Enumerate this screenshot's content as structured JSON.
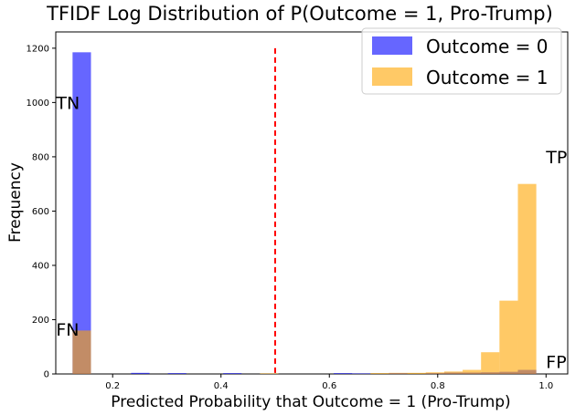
{
  "chart_data": {
    "type": "histogram",
    "title": "TFIDF Log Distribution of P(Outcome = 1, Pro-Trump)",
    "xlabel": "Predicted Probability that Outcome = 1 (Pro-Trump)",
    "ylabel": "Frequency",
    "xlim": [
      0.095,
      1.04
    ],
    "ylim": [
      0,
      1260
    ],
    "xticks": [
      0.2,
      0.4,
      0.6,
      0.8,
      1.0
    ],
    "xtick_labels": [
      "0.2",
      "0.4",
      "0.6",
      "0.8",
      "1.0"
    ],
    "yticks": [
      0,
      200,
      400,
      600,
      800,
      1000,
      1200
    ],
    "ytick_labels": [
      "0",
      "200",
      "400",
      "600",
      "800",
      "1000",
      "1200"
    ],
    "threshold": {
      "x": 0.5,
      "y_top": 1200,
      "color": "#ff0000",
      "style": "dashed"
    },
    "legend_position": "top-right",
    "series": [
      {
        "name": "Outcome = 0",
        "color": "#0000ff",
        "opacity": 0.6,
        "bins": [
          {
            "x0": 0.126,
            "x1": 0.16,
            "count": 1185
          },
          {
            "x0": 0.234,
            "x1": 0.268,
            "count": 4
          },
          {
            "x0": 0.302,
            "x1": 0.336,
            "count": 3
          },
          {
            "x0": 0.404,
            "x1": 0.438,
            "count": 3
          },
          {
            "x0": 0.608,
            "x1": 0.642,
            "count": 3
          },
          {
            "x0": 0.642,
            "x1": 0.676,
            "count": 2
          },
          {
            "x0": 0.71,
            "x1": 0.744,
            "count": 3
          },
          {
            "x0": 0.778,
            "x1": 0.812,
            "count": 3
          },
          {
            "x0": 0.812,
            "x1": 0.846,
            "count": 5
          },
          {
            "x0": 0.846,
            "x1": 0.88,
            "count": 5
          },
          {
            "x0": 0.88,
            "x1": 0.914,
            "count": 6
          },
          {
            "x0": 0.914,
            "x1": 0.948,
            "count": 8
          },
          {
            "x0": 0.948,
            "x1": 0.982,
            "count": 15
          }
        ]
      },
      {
        "name": "Outcome = 1",
        "color": "#ffa500",
        "opacity": 0.6,
        "bins": [
          {
            "x0": 0.126,
            "x1": 0.16,
            "count": 160
          },
          {
            "x0": 0.472,
            "x1": 0.506,
            "count": 2
          },
          {
            "x0": 0.676,
            "x1": 0.71,
            "count": 3
          },
          {
            "x0": 0.71,
            "x1": 0.744,
            "count": 4
          },
          {
            "x0": 0.744,
            "x1": 0.778,
            "count": 4
          },
          {
            "x0": 0.778,
            "x1": 0.812,
            "count": 6
          },
          {
            "x0": 0.812,
            "x1": 0.846,
            "count": 9
          },
          {
            "x0": 0.846,
            "x1": 0.88,
            "count": 15
          },
          {
            "x0": 0.88,
            "x1": 0.914,
            "count": 80
          },
          {
            "x0": 0.914,
            "x1": 0.948,
            "count": 270
          },
          {
            "x0": 0.948,
            "x1": 0.982,
            "count": 700
          }
        ]
      }
    ],
    "annotations": [
      {
        "text": "TN",
        "x": 0.126,
        "y": 1000
      },
      {
        "text": "FN",
        "x": 0.126,
        "y": 165
      },
      {
        "text": "TP",
        "x": 1.0,
        "y": 800
      },
      {
        "text": "FP",
        "x": 1.0,
        "y": 45
      }
    ]
  }
}
